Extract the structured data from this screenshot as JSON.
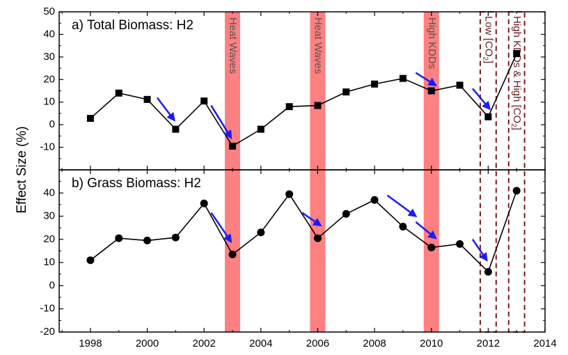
{
  "chart_data": {
    "type": "line",
    "ylabel": "Effect Size (%)",
    "x_ticks": [
      "1998",
      "2000",
      "2002",
      "2004",
      "2006",
      "2008",
      "2010",
      "2012",
      "2014"
    ],
    "xlim": [
      1996.9,
      2014
    ],
    "panels": [
      {
        "title": "a) Total Biomass: H2",
        "marker": "square",
        "ylim": [
          -20,
          50
        ],
        "y_ticks": [
          "-10",
          "0",
          "10",
          "20",
          "30",
          "40",
          "50"
        ],
        "x": [
          1998,
          1999,
          2000,
          2001,
          2002,
          2003,
          2004,
          2005,
          2006,
          2007,
          2008,
          2009,
          2010,
          2011,
          2012,
          2013
        ],
        "values": [
          2.8,
          14,
          11.2,
          -2,
          10.5,
          -9.5,
          -2,
          8,
          8.5,
          14.5,
          18,
          20.5,
          15,
          17.5,
          3.5,
          31.5
        ],
        "arrows": [
          [
            2000.35,
            12
          ],
          [
            2000.95,
            2
          ],
          [
            2002.25,
            8.5
          ],
          [
            2002.95,
            -5.8
          ],
          [
            2009.45,
            23
          ],
          [
            2010.15,
            17.5
          ],
          [
            2011.45,
            16
          ],
          [
            2012.05,
            7
          ]
        ]
      },
      {
        "title": "b) Grass Biomass: H2",
        "marker": "circle",
        "ylim": [
          -20,
          50
        ],
        "y_ticks": [
          "-20",
          "-10",
          "0",
          "10",
          "20",
          "30",
          "40"
        ],
        "x": [
          1998,
          1999,
          2000,
          2001,
          2002,
          2003,
          2004,
          2005,
          2006,
          2007,
          2008,
          2009,
          2010,
          2011,
          2012,
          2013
        ],
        "values": [
          11,
          20.5,
          19.5,
          20.8,
          35.5,
          13.5,
          23,
          39.5,
          20.5,
          31,
          37,
          25.5,
          16.5,
          18,
          6,
          41
        ],
        "arrows": [
          [
            2002.25,
            31.5
          ],
          [
            2002.95,
            19
          ],
          [
            2005.45,
            31.5
          ],
          [
            2006.1,
            26
          ],
          [
            2008.45,
            39
          ],
          [
            2009.45,
            30
          ],
          [
            2009.45,
            27.5
          ],
          [
            2010.15,
            20.5
          ],
          [
            2011.45,
            20
          ],
          [
            2011.95,
            11
          ]
        ]
      }
    ],
    "shaded_bands": [
      {
        "x0": 2002.73,
        "x1": 2003.27,
        "label": "Heat Waves"
      },
      {
        "x0": 2005.73,
        "x1": 2006.27,
        "label": "Heat Waves"
      },
      {
        "x0": 2009.73,
        "x1": 2010.27,
        "label": "High KDDs"
      }
    ],
    "dashed_boxes": [
      {
        "x0": 2011.72,
        "x1": 2012.28,
        "label": "Low [CO",
        "sub": "2",
        "tail": "]"
      },
      {
        "x0": 2012.72,
        "x1": 2013.28,
        "label": "High KDDs & High [CO",
        "sub": "2",
        "tail": "]"
      }
    ],
    "colors": {
      "band": "#ff8080",
      "box": "#7a1a1a",
      "arrow": "#1a1aff",
      "line": "#000000"
    }
  }
}
